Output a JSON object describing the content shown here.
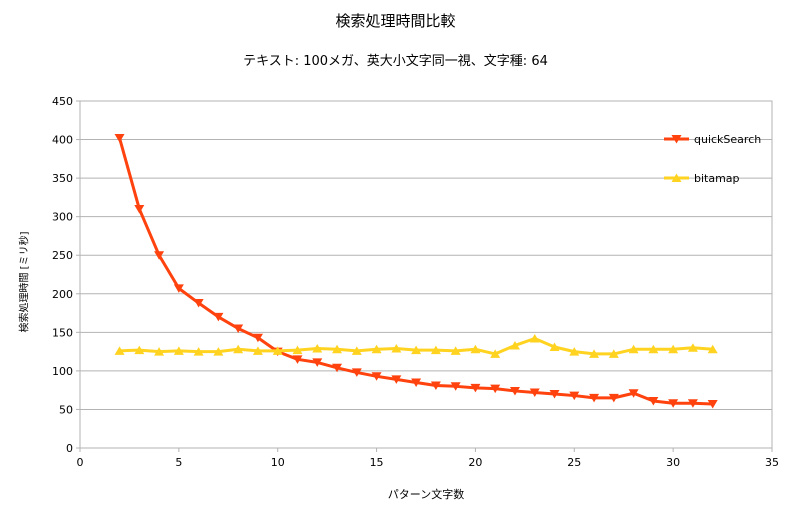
{
  "chart_data": {
    "type": "line",
    "title": "検索処理時間比較",
    "subtitle": "テキスト: 100メガ、英大小文字同一視、文字種: 64",
    "xlabel": "パターン文字数",
    "ylabel": "検索処理時間 [ミリ秒]",
    "xlim": [
      0,
      35
    ],
    "ylim": [
      0,
      450
    ],
    "xticks": [
      0,
      5,
      10,
      15,
      20,
      25,
      30,
      35
    ],
    "yticks": [
      0,
      50,
      100,
      150,
      200,
      250,
      300,
      350,
      400,
      450
    ],
    "grid": true,
    "legend_position": "right",
    "x": [
      2,
      3,
      4,
      5,
      6,
      7,
      8,
      9,
      10,
      11,
      12,
      13,
      14,
      15,
      16,
      17,
      18,
      19,
      20,
      21,
      22,
      23,
      24,
      25,
      26,
      27,
      28,
      29,
      30,
      31,
      32
    ],
    "series": [
      {
        "name": "quickSearch",
        "color": "#ff420e",
        "marker": "triangle-down",
        "values": [
          402,
          310,
          250,
          207,
          188,
          170,
          155,
          143,
          125,
          115,
          111,
          104,
          98,
          93,
          89,
          85,
          81,
          80,
          78,
          77,
          74,
          72,
          70,
          68,
          65,
          65,
          71,
          61,
          58,
          58,
          57
        ]
      },
      {
        "name": "bitamap",
        "color": "#ffd320",
        "marker": "triangle-up",
        "values": [
          126,
          127,
          125,
          126,
          125,
          125,
          128,
          126,
          126,
          127,
          129,
          128,
          126,
          128,
          129,
          127,
          127,
          126,
          128,
          122,
          133,
          142,
          131,
          125,
          122,
          122,
          128,
          128,
          128,
          130,
          128
        ]
      }
    ]
  }
}
